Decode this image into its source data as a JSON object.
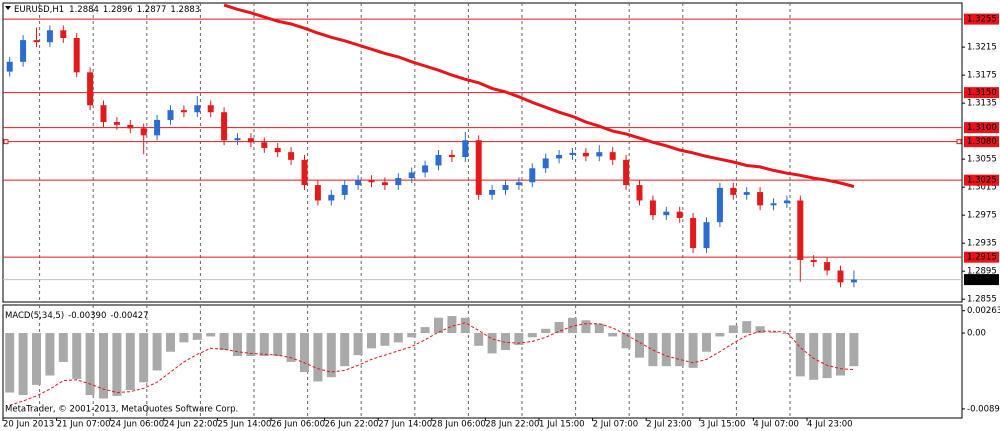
{
  "chart_data": {
    "type": "candlestick",
    "header": {
      "symbol": "EURUSD,H1",
      "open": 1.2884,
      "high": 1.2896,
      "low": 1.2877,
      "close": 1.2883
    },
    "x_labels": [
      "20 Jun 2013",
      "21 Jun 07:00",
      "24 Jun 06:00",
      "24 Jun 22:00",
      "25 Jun 14:00",
      "26 Jun 06:00",
      "26 Jun 22:00",
      "27 Jun 14:00",
      "28 Jun 06:00",
      "28 Jun 22:00",
      "1 Jul 15:00",
      "2 Jul 07:00",
      "2 Jul 23:00",
      "3 Jul 15:00",
      "4 Jul 07:00",
      "4 Jul 23:00"
    ],
    "open": [
      1.318,
      1.3194,
      1.3225,
      1.3222,
      1.3239,
      1.3228,
      1.3179,
      1.3132,
      1.3108,
      1.3104,
      1.3099,
      1.3089,
      1.3111,
      1.3125,
      1.3122,
      1.3132,
      1.3122,
      1.3082,
      1.3085,
      1.3079,
      1.3071,
      1.3065,
      1.3054,
      1.3018,
      1.2996,
      1.3004,
      1.3018,
      1.3025,
      1.3022,
      1.3018,
      1.3028,
      1.3036,
      1.3046,
      1.3061,
      1.3058,
      1.3082,
      1.3004,
      1.3011,
      1.3018,
      1.3022,
      1.3042,
      1.3056,
      1.3061,
      1.3064,
      1.3059,
      1.3065,
      1.3054,
      1.3018,
      1.2996,
      1.2975,
      1.298,
      1.2971,
      1.2928,
      1.2965,
      1.3014,
      1.3004,
      1.3008,
      1.2989,
      1.2992,
      1.2996,
      1.2911,
      1.2908,
      1.2896,
      1.2879
    ],
    "high": [
      1.3201,
      1.3232,
      1.3243,
      1.3246,
      1.3246,
      1.3235,
      1.3186,
      1.3139,
      1.3115,
      1.3111,
      1.3106,
      1.3118,
      1.3132,
      1.3132,
      1.3145,
      1.3139,
      1.3129,
      1.3092,
      1.3092,
      1.3086,
      1.3078,
      1.3072,
      1.3061,
      1.3025,
      1.3011,
      1.3025,
      1.3032,
      1.3032,
      1.3029,
      1.3035,
      1.3043,
      1.3053,
      1.3068,
      1.3068,
      1.3094,
      1.3089,
      1.3018,
      1.3025,
      1.3029,
      1.3049,
      1.3063,
      1.3068,
      1.3071,
      1.3071,
      1.3075,
      1.3072,
      1.3061,
      1.3025,
      1.3003,
      1.2987,
      1.2987,
      1.2978,
      1.2972,
      1.3021,
      1.3021,
      1.3015,
      1.3015,
      1.2999,
      1.3003,
      1.3003,
      1.2918,
      1.2915,
      1.2903,
      1.2896
    ],
    "low": [
      1.3173,
      1.3187,
      1.3215,
      1.3215,
      1.3221,
      1.3172,
      1.3125,
      1.3101,
      1.3097,
      1.3092,
      1.3062,
      1.3082,
      1.3104,
      1.3115,
      1.3115,
      1.3115,
      1.3075,
      1.3075,
      1.3072,
      1.3064,
      1.3058,
      1.3047,
      1.3011,
      1.2989,
      1.2989,
      1.2997,
      1.3011,
      1.3015,
      1.3011,
      1.3011,
      1.3021,
      1.3029,
      1.3039,
      1.3051,
      1.3051,
      1.2997,
      1.2997,
      1.3004,
      1.3011,
      1.3015,
      1.3035,
      1.3049,
      1.3054,
      1.3052,
      1.3052,
      1.3047,
      1.3011,
      1.2989,
      1.2968,
      1.2968,
      1.2964,
      1.2921,
      1.2921,
      1.2958,
      1.2997,
      1.2997,
      1.2982,
      1.2982,
      1.2985,
      1.288,
      1.2901,
      1.2889,
      1.2872,
      1.2872
    ],
    "close": [
      1.3194,
      1.3225,
      1.3222,
      1.3239,
      1.3228,
      1.3179,
      1.3132,
      1.3108,
      1.3104,
      1.3099,
      1.3089,
      1.3111,
      1.3125,
      1.3122,
      1.3132,
      1.3122,
      1.3082,
      1.3085,
      1.3079,
      1.3071,
      1.3065,
      1.3054,
      1.3018,
      1.2996,
      1.3004,
      1.3018,
      1.3025,
      1.3022,
      1.3018,
      1.3028,
      1.3036,
      1.3046,
      1.3061,
      1.3058,
      1.3082,
      1.3004,
      1.3011,
      1.3018,
      1.3022,
      1.3042,
      1.3056,
      1.3061,
      1.3064,
      1.3059,
      1.3065,
      1.3054,
      1.3018,
      1.2996,
      1.2975,
      1.298,
      1.2971,
      1.2928,
      1.2965,
      1.3014,
      1.3004,
      1.3008,
      1.2989,
      1.2992,
      1.2996,
      1.2911,
      1.2908,
      1.2896,
      1.2879,
      1.2883
    ],
    "up_color": "#2a6ccf",
    "down_color": "#e31a1c",
    "ylim": [
      1.2851,
      1.3278
    ],
    "yticks": [
      1.3215,
      1.3175,
      1.3135,
      1.3055,
      1.3015,
      1.2975,
      1.2935,
      1.2895,
      1.2855
    ],
    "grid": true,
    "levels": {
      "color": "#e8141a",
      "values": [
        1.3255,
        {
          "value": 1.315,
          "label": "1.3150"
        },
        {
          "value": 1.31,
          "label": "1.3100"
        },
        {
          "value": 1.308,
          "label": "1.3080"
        },
        1.3025,
        1.2915
      ]
    },
    "current_price": 1.2883,
    "ma": {
      "color": "#e8141a",
      "values": [
        null,
        null,
        null,
        null,
        null,
        null,
        null,
        null,
        null,
        null,
        null,
        null,
        null,
        null,
        null,
        null,
        1.3275,
        1.3269,
        1.3264,
        1.3258,
        1.3252,
        1.3248,
        1.3242,
        1.3235,
        1.3229,
        1.3224,
        1.3218,
        1.3212,
        1.3206,
        1.3201,
        1.3194,
        1.3188,
        1.3182,
        1.3175,
        1.3169,
        1.3164,
        1.3156,
        1.3151,
        1.3144,
        1.3136,
        1.3129,
        1.3122,
        1.3116,
        1.3108,
        1.3102,
        1.3095,
        1.3091,
        1.3085,
        1.3079,
        1.3074,
        1.3068,
        1.3064,
        1.3059,
        1.3055,
        1.3051,
        1.3046,
        1.3044,
        1.3039,
        1.3035,
        1.3032,
        1.3028,
        1.3025,
        1.3021,
        1.3016
      ]
    },
    "macd": {
      "label": "MACD(5,34,5)",
      "main_value": {
        "value": -0.0039,
        "label": "-0.00390"
      },
      "signal_value": -0.00427,
      "histogram_color": "#a9a9a9",
      "signal_color": "#e8141a",
      "histogram": [
        -0.007,
        -0.0073,
        -0.0061,
        -0.005,
        -0.0034,
        -0.0054,
        -0.0073,
        -0.0077,
        -0.0074,
        -0.0067,
        -0.0058,
        -0.0044,
        -0.0022,
        -0.0011,
        -0.0008,
        -0.0004,
        -0.002,
        -0.0027,
        -0.0027,
        -0.0027,
        -0.0027,
        -0.0034,
        -0.0046,
        -0.0057,
        -0.0052,
        -0.0039,
        -0.0026,
        -0.0018,
        -0.0015,
        -0.0011,
        -0.0005,
        0.0007,
        0.0018,
        0.002,
        0.0018,
        -0.0015,
        -0.0024,
        -0.002,
        -0.0014,
        -0.0005,
        0.0005,
        0.0013,
        0.0018,
        0.0015,
        0.0011,
        -0.0004,
        -0.0018,
        -0.0029,
        -0.0039,
        -0.0039,
        -0.0039,
        -0.0041,
        -0.0022,
        -0.0004,
        0.0009,
        0.0014,
        0.0008,
        0.0001,
        -0.0001,
        -0.0051,
        -0.0055,
        -0.0053,
        -0.005,
        -0.0039
      ],
      "signal": [
        -0.0085,
        -0.008,
        -0.0074,
        -0.0066,
        -0.0056,
        -0.0055,
        -0.006,
        -0.0066,
        -0.007,
        -0.0069,
        -0.0065,
        -0.0058,
        -0.0046,
        -0.0034,
        -0.0025,
        -0.0018,
        -0.0019,
        -0.0022,
        -0.0024,
        -0.0025,
        -0.0026,
        -0.0029,
        -0.0035,
        -0.0042,
        -0.0046,
        -0.0044,
        -0.0038,
        -0.0031,
        -0.0026,
        -0.0021,
        -0.0016,
        -0.0008,
        0.0001,
        0.0008,
        0.0012,
        0.0003,
        -0.0007,
        -0.0011,
        -0.0012,
        -0.001,
        -0.0005,
        0.0002,
        0.0008,
        0.0011,
        0.0011,
        0.0006,
        -0.0002,
        -0.0011,
        -0.002,
        -0.0027,
        -0.0031,
        -0.0035,
        -0.0031,
        -0.0022,
        -0.0012,
        -0.0003,
        0.0002,
        0.0002,
        0.0001,
        -0.0017,
        -0.003,
        -0.0038,
        -0.0042,
        -0.0043
      ],
      "ylim": [
        -0.01,
        0.0033
      ],
      "yticks": [
        0.00263,
        {
          "value": 0,
          "label": "0.00"
        },
        -0.00893
      ]
    },
    "footer": "MetaTrader, © 2001-2013, MetaQuotes Software Corp."
  }
}
